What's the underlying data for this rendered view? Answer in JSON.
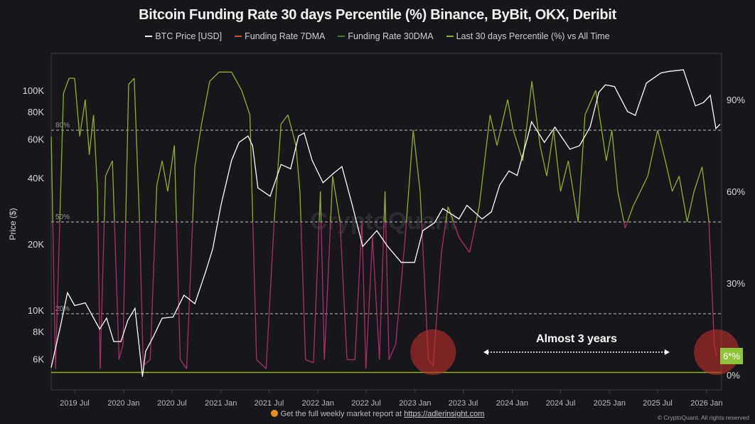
{
  "chart_data": {
    "type": "line",
    "title": "Bitcoin Funding Rate 30 days Percentile (%) Binance, ByBit, OKX, Deribit",
    "legend": [
      {
        "name": "BTC Price [USD]",
        "color": "#ffffff"
      },
      {
        "name": "Funding Rate 7DMA",
        "color": "#c0562e"
      },
      {
        "name": "Funding Rate 30DMA",
        "color": "#3f7a2e"
      },
      {
        "name": "Last 30 days Percentile (%) vs All Time",
        "color": "#8fb02a"
      }
    ],
    "legend_position": "top",
    "ylabel_left": "Price ($)",
    "y_left_scale": "log",
    "y_left_ticks": [
      "6K",
      "8K",
      "10K",
      "20K",
      "40K",
      "60K",
      "80K",
      "100K"
    ],
    "y_right_ticks": [
      "0%",
      "30%",
      "60%",
      "90%"
    ],
    "x_ticks": [
      "2019 Jul",
      "2020 Jan",
      "2020 Jul",
      "2021 Jan",
      "2021 Jul",
      "2022 Jan",
      "2022 Jul",
      "2023 Jan",
      "2023 Jul",
      "2024 Jan",
      "2024 Jul",
      "2025 Jan",
      "2025 Jul",
      "2026 Jan"
    ],
    "reference_lines": [
      {
        "value": 80,
        "label": "80%"
      },
      {
        "value": 50,
        "label": "50%"
      },
      {
        "value": 20,
        "label": "20%"
      }
    ],
    "percentile_colors": {
      "high": "#8fb02a",
      "low": "#a8306a"
    },
    "series": [
      {
        "name": "BTC Price [USD]",
        "unit": "K USD",
        "points": [
          [
            "2019-04-04",
            5.5
          ],
          [
            "2019-05-09",
            8.5
          ],
          [
            "2019-06-04",
            12
          ],
          [
            "2019-07-01",
            10.5
          ],
          [
            "2019-08-10",
            10.8
          ],
          [
            "2019-10-03",
            8.2
          ],
          [
            "2019-10-29",
            9.2
          ],
          [
            "2019-11-25",
            7.2
          ],
          [
            "2019-12-22",
            7.2
          ],
          [
            "2020-01-17",
            9
          ],
          [
            "2020-02-13",
            10.2
          ],
          [
            "2020-03-12",
            5
          ],
          [
            "2020-03-24",
            6.5
          ],
          [
            "2020-04-20",
            7.5
          ],
          [
            "2020-05-25",
            9.2
          ],
          [
            "2020-07-05",
            9.3
          ],
          [
            "2020-08-15",
            11.7
          ],
          [
            "2020-09-25",
            10.7
          ],
          [
            "2020-11-05",
            15
          ],
          [
            "2020-12-01",
            19
          ],
          [
            "2021-01-01",
            30
          ],
          [
            "2021-02-10",
            48
          ],
          [
            "2021-03-10",
            58
          ],
          [
            "2021-04-13",
            62
          ],
          [
            "2021-04-30",
            56
          ],
          [
            "2021-05-20",
            36
          ],
          [
            "2021-07-05",
            33
          ],
          [
            "2021-08-15",
            46
          ],
          [
            "2021-09-20",
            44
          ],
          [
            "2021-10-20",
            62
          ],
          [
            "2021-11-10",
            64
          ],
          [
            "2021-12-10",
            48
          ],
          [
            "2022-01-20",
            38
          ],
          [
            "2022-03-01",
            42
          ],
          [
            "2022-04-01",
            45
          ],
          [
            "2022-05-10",
            30
          ],
          [
            "2022-06-18",
            19.5
          ],
          [
            "2022-08-10",
            23
          ],
          [
            "2022-09-20",
            19.5
          ],
          [
            "2022-11-10",
            16.5
          ],
          [
            "2022-12-30",
            16.5
          ],
          [
            "2023-01-30",
            23
          ],
          [
            "2023-03-15",
            25
          ],
          [
            "2023-04-15",
            29
          ],
          [
            "2023-06-15",
            26
          ],
          [
            "2023-07-15",
            30
          ],
          [
            "2023-09-10",
            26
          ],
          [
            "2023-10-15",
            28
          ],
          [
            "2023-11-15",
            37
          ],
          [
            "2023-12-20",
            43
          ],
          [
            "2024-01-20",
            41
          ],
          [
            "2024-02-28",
            61
          ],
          [
            "2024-03-14",
            72
          ],
          [
            "2024-05-01",
            58
          ],
          [
            "2024-06-10",
            68
          ],
          [
            "2024-08-05",
            54
          ],
          [
            "2024-09-10",
            56
          ],
          [
            "2024-10-20",
            68
          ],
          [
            "2024-11-22",
            98
          ],
          [
            "2024-12-17",
            106
          ],
          [
            "2025-01-20",
            104
          ],
          [
            "2025-03-10",
            80
          ],
          [
            "2025-04-08",
            77
          ],
          [
            "2025-05-20",
            108
          ],
          [
            "2025-07-14",
            120
          ],
          [
            "2025-08-14",
            122
          ],
          [
            "2025-10-06",
            124
          ],
          [
            "2025-11-20",
            85
          ],
          [
            "2025-12-20",
            88
          ],
          [
            "2026-01-15",
            95
          ],
          [
            "2026-02-05",
            67
          ],
          [
            "2026-02-20",
            70
          ]
        ]
      },
      {
        "name": "Last 30 days Percentile (%) vs All Time",
        "unit": "%",
        "points": [
          [
            "2019-04-04",
            78
          ],
          [
            "2019-04-20",
            2
          ],
          [
            "2019-05-20",
            92
          ],
          [
            "2019-06-10",
            97
          ],
          [
            "2019-07-01",
            97
          ],
          [
            "2019-07-20",
            78
          ],
          [
            "2019-08-10",
            90
          ],
          [
            "2019-08-25",
            72
          ],
          [
            "2019-09-10",
            85
          ],
          [
            "2019-09-25",
            60
          ],
          [
            "2019-10-05",
            2
          ],
          [
            "2019-10-25",
            65
          ],
          [
            "2019-11-20",
            70
          ],
          [
            "2019-12-15",
            5
          ],
          [
            "2019-12-30",
            10
          ],
          [
            "2020-01-20",
            95
          ],
          [
            "2020-02-10",
            97
          ],
          [
            "2020-03-01",
            50
          ],
          [
            "2020-03-15",
            3
          ],
          [
            "2020-04-10",
            5
          ],
          [
            "2020-05-05",
            62
          ],
          [
            "2020-05-25",
            70
          ],
          [
            "2020-06-15",
            60
          ],
          [
            "2020-07-10",
            75
          ],
          [
            "2020-08-01",
            5
          ],
          [
            "2020-08-25",
            2
          ],
          [
            "2020-09-25",
            68
          ],
          [
            "2020-10-20",
            82
          ],
          [
            "2020-11-20",
            96
          ],
          [
            "2020-12-25",
            99
          ],
          [
            "2021-02-10",
            99
          ],
          [
            "2021-03-20",
            93
          ],
          [
            "2021-04-20",
            85
          ],
          [
            "2021-05-15",
            5
          ],
          [
            "2021-06-20",
            2
          ],
          [
            "2021-07-20",
            50
          ],
          [
            "2021-08-15",
            82
          ],
          [
            "2021-09-10",
            85
          ],
          [
            "2021-10-10",
            75
          ],
          [
            "2021-10-25",
            60
          ],
          [
            "2021-11-15",
            5
          ],
          [
            "2021-12-15",
            4
          ],
          [
            "2022-01-10",
            60
          ],
          [
            "2022-01-25",
            5
          ],
          [
            "2022-02-25",
            65
          ],
          [
            "2022-03-25",
            50
          ],
          [
            "2022-04-20",
            5
          ],
          [
            "2022-05-20",
            5
          ],
          [
            "2022-06-15",
            50
          ],
          [
            "2022-06-30",
            2
          ],
          [
            "2022-07-25",
            45
          ],
          [
            "2022-08-20",
            5
          ],
          [
            "2022-09-10",
            60
          ],
          [
            "2022-09-25",
            5
          ],
          [
            "2022-10-20",
            10
          ],
          [
            "2022-11-25",
            45
          ],
          [
            "2022-12-25",
            80
          ],
          [
            "2023-01-20",
            60
          ],
          [
            "2023-02-20",
            5
          ],
          [
            "2023-03-10",
            3
          ],
          [
            "2023-04-10",
            40
          ],
          [
            "2023-05-05",
            55
          ],
          [
            "2023-06-15",
            45
          ],
          [
            "2023-07-25",
            40
          ],
          [
            "2023-08-30",
            55
          ],
          [
            "2023-10-10",
            85
          ],
          [
            "2023-11-05",
            75
          ],
          [
            "2023-12-15",
            90
          ],
          [
            "2024-01-05",
            80
          ],
          [
            "2024-02-10",
            70
          ],
          [
            "2024-03-15",
            96
          ],
          [
            "2024-04-15",
            75
          ],
          [
            "2024-05-10",
            65
          ],
          [
            "2024-06-05",
            80
          ],
          [
            "2024-07-01",
            60
          ],
          [
            "2024-07-30",
            70
          ],
          [
            "2024-09-05",
            50
          ],
          [
            "2024-10-01",
            85
          ],
          [
            "2024-11-10",
            93
          ],
          [
            "2024-12-20",
            70
          ],
          [
            "2025-01-10",
            80
          ],
          [
            "2025-02-01",
            60
          ],
          [
            "2025-03-01",
            48
          ],
          [
            "2025-03-30",
            55
          ],
          [
            "2025-05-25",
            65
          ],
          [
            "2025-07-01",
            80
          ],
          [
            "2025-07-30",
            70
          ],
          [
            "2025-08-25",
            60
          ],
          [
            "2025-09-20",
            65
          ],
          [
            "2025-10-20",
            50
          ],
          [
            "2025-11-15",
            60
          ],
          [
            "2025-12-15",
            68
          ],
          [
            "2026-01-10",
            50
          ],
          [
            "2026-01-30",
            10
          ],
          [
            "2026-02-08",
            6
          ]
        ]
      }
    ],
    "annotations": {
      "span_label": "Almost 3 years",
      "span_from": "2023-09-15",
      "span_to": "2025-08-15",
      "highlight_circles": [
        "2023-03-10",
        "2026-02-08"
      ],
      "current_value_badge": "6*%"
    },
    "watermark": "CryptoQuant"
  },
  "footer": {
    "text": "Get the full weekly market report at ",
    "link": "https://adlerinsight.com",
    "copyright": "© CryptoQuant. All rights reserved"
  }
}
